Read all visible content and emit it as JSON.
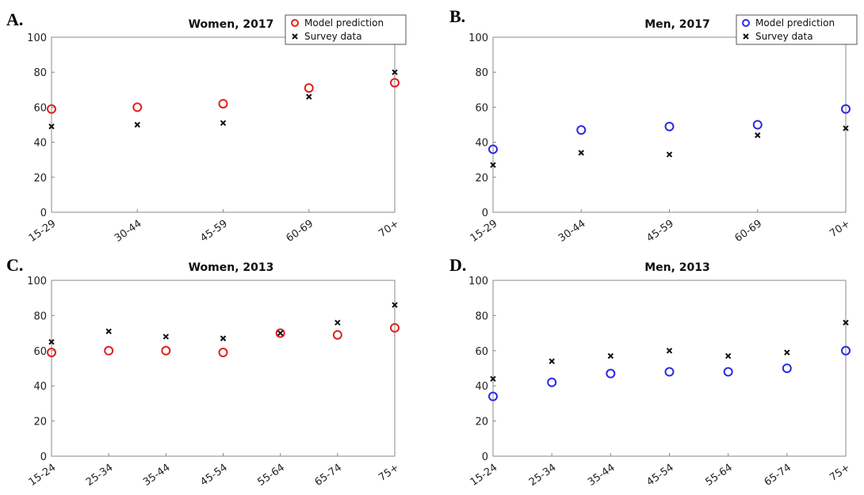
{
  "panels": [
    {
      "letter": "A."
    },
    {
      "letter": "B."
    },
    {
      "letter": "C."
    },
    {
      "letter": "D."
    }
  ],
  "chart_data": [
    {
      "type": "scatter",
      "title": "Women, 2017",
      "categories": [
        "15-29",
        "30-44",
        "45-59",
        "60-69",
        "70+"
      ],
      "ylim": [
        0,
        100
      ],
      "yticks": [
        0,
        20,
        40,
        60,
        80,
        100
      ],
      "grid": false,
      "legend": {
        "placement": "top-right",
        "entries": [
          "Model prediction",
          "Survey data"
        ]
      },
      "series": [
        {
          "name": "Model prediction",
          "marker": "circle",
          "color": "#e02020",
          "values": [
            59,
            60,
            62,
            71,
            74
          ]
        },
        {
          "name": "Survey data",
          "marker": "x",
          "color": "#111111",
          "values": [
            49,
            50,
            51,
            66,
            80
          ]
        }
      ]
    },
    {
      "type": "scatter",
      "title": "Men, 2017",
      "categories": [
        "15-29",
        "30-44",
        "45-59",
        "60-69",
        "70+"
      ],
      "ylim": [
        0,
        100
      ],
      "yticks": [
        0,
        20,
        40,
        60,
        80,
        100
      ],
      "grid": false,
      "legend": {
        "placement": "top-right",
        "entries": [
          "Model prediction",
          "Survey data"
        ]
      },
      "series": [
        {
          "name": "Model prediction",
          "marker": "circle",
          "color": "#2a2ae0",
          "values": [
            36,
            47,
            49,
            50,
            59
          ]
        },
        {
          "name": "Survey data",
          "marker": "x",
          "color": "#111111",
          "values": [
            27,
            34,
            33,
            44,
            48
          ]
        }
      ]
    },
    {
      "type": "scatter",
      "title": "Women, 2013",
      "categories": [
        "15-24",
        "25-34",
        "35-44",
        "45-54",
        "55-64",
        "65-74",
        "75+"
      ],
      "ylim": [
        0,
        100
      ],
      "yticks": [
        0,
        20,
        40,
        60,
        80,
        100
      ],
      "grid": false,
      "series": [
        {
          "name": "Model prediction",
          "marker": "circle",
          "color": "#e02020",
          "values": [
            59,
            60,
            60,
            59,
            70,
            69,
            73
          ]
        },
        {
          "name": "Survey data",
          "marker": "x",
          "color": "#111111",
          "values": [
            65,
            71,
            68,
            67,
            70,
            76,
            86
          ]
        }
      ]
    },
    {
      "type": "scatter",
      "title": "Men, 2013",
      "categories": [
        "15-24",
        "25-34",
        "35-44",
        "45-54",
        "55-64",
        "65-74",
        "75+"
      ],
      "ylim": [
        0,
        100
      ],
      "yticks": [
        0,
        20,
        40,
        60,
        80,
        100
      ],
      "grid": false,
      "series": [
        {
          "name": "Model prediction",
          "marker": "circle",
          "color": "#2a2ae0",
          "values": [
            34,
            42,
            47,
            48,
            48,
            50,
            60
          ]
        },
        {
          "name": "Survey data",
          "marker": "x",
          "color": "#111111",
          "values": [
            44,
            54,
            57,
            60,
            57,
            59,
            76
          ]
        }
      ]
    }
  ]
}
